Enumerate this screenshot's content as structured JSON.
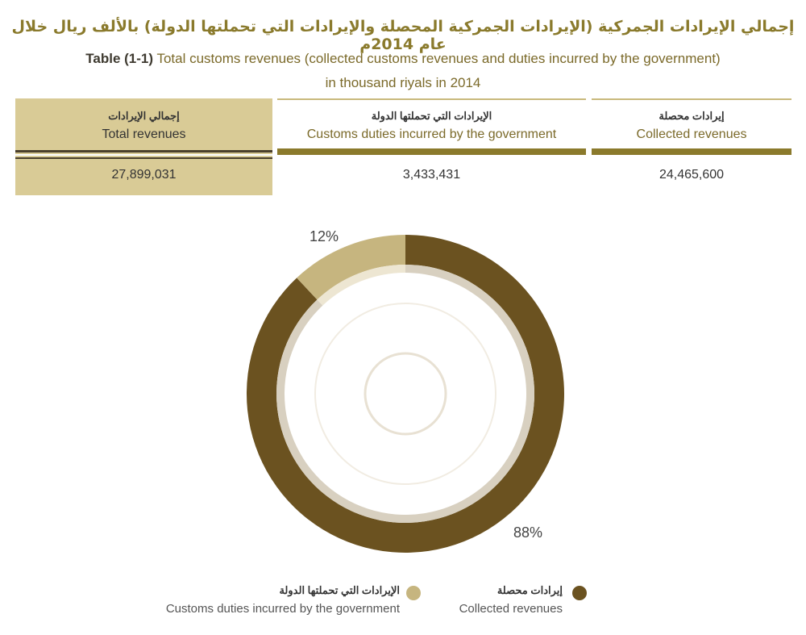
{
  "title_ar": "إجمالي الإيرادات الجمركية (الإيرادات الجمركية المحصلة والإيرادات التي تحملتها الدولة) بالألف ريال خلال عام 2014م",
  "title_en_prefix": "Table (1-1)",
  "title_en": "Total customs revenues (collected customs revenues and duties incurred by the government)",
  "title_en_line2": "in thousand riyals in 2014",
  "table": {
    "columns": [
      {
        "ar": "إجمالي الإيرادات",
        "en": "Total revenues",
        "value": "27,899,031"
      },
      {
        "ar": "الإيرادات التي تحملتها الدولة",
        "en": "Customs duties incurred by the government",
        "value": "3,433,431"
      },
      {
        "ar": "إيرادات محصلة",
        "en": "Collected revenues",
        "value": "24,465,600"
      }
    ]
  },
  "chart_data": {
    "type": "pie",
    "donut": true,
    "series": [
      {
        "name": "Collected revenues",
        "name_ar": "إيرادات محصلة",
        "value": 88,
        "label": "88%",
        "color": "#6b5220"
      },
      {
        "name": "Customs duties incurred by the government",
        "name_ar": "الإيرادات التي تحملتها الدولة",
        "value": 12,
        "label": "12%",
        "color": "#c6b57f"
      }
    ],
    "legend": "bottom"
  }
}
